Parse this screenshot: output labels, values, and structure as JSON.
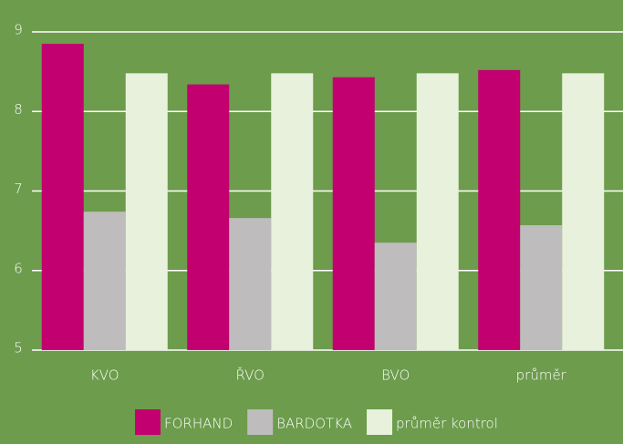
{
  "chart_data": {
    "type": "bar",
    "categories": [
      "KVO",
      "ŘVO",
      "BVO",
      "průměr"
    ],
    "series": [
      {
        "name": "FORHAND",
        "color": "#c2006f",
        "values": [
          8.85,
          8.34,
          8.43,
          8.52
        ]
      },
      {
        "name": "BARDOTKA",
        "color": "#bebcbc",
        "values": [
          6.74,
          6.66,
          6.35,
          6.57
        ]
      },
      {
        "name": "průměr kontrol",
        "color": "#e8f1dc",
        "values": [
          8.48,
          8.48,
          8.48,
          8.48
        ]
      }
    ],
    "ylim": [
      5,
      9
    ],
    "yticks": [
      5,
      6,
      7,
      8,
      9
    ],
    "grid": true,
    "legend": "bottom"
  }
}
